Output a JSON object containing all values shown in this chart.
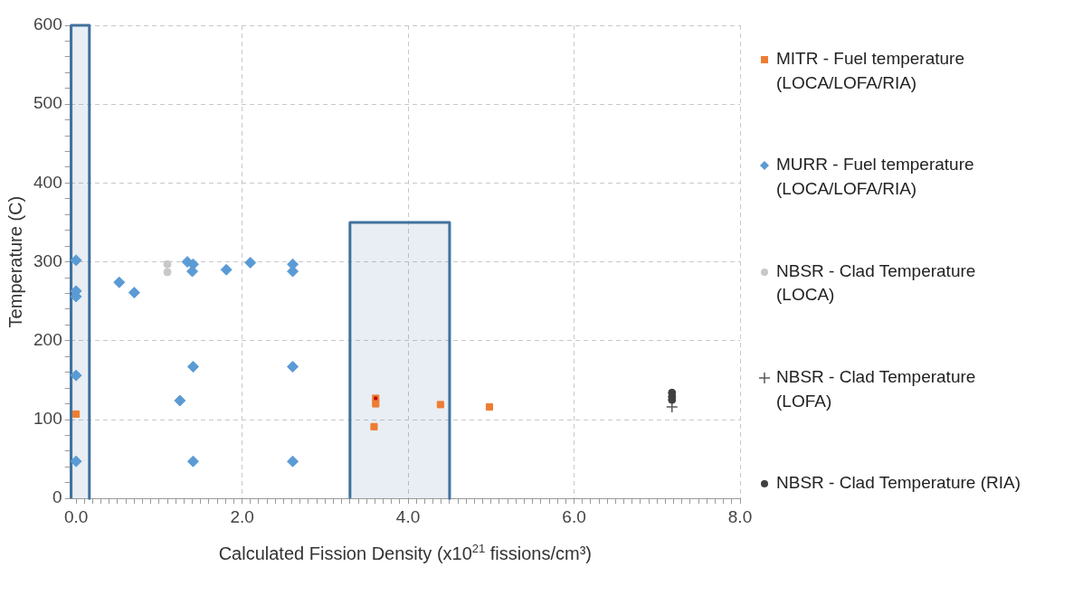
{
  "chart_data": {
    "type": "scatter",
    "xlabel": "Calculated Fission Density (x10$^{21}$ fissions/cm³)",
    "ylabel": "Temperature (C)",
    "xlim": [
      -0.07,
      8
    ],
    "ylim": [
      0,
      600
    ],
    "xticks": [
      {
        "value": 0,
        "label": "0.0"
      },
      {
        "value": 0.1,
        "label": null
      },
      {
        "value": 0.2,
        "label": null
      },
      {
        "value": 0.3,
        "label": null
      },
      {
        "value": 0.4,
        "label": null
      },
      {
        "value": 0.5,
        "label": null
      },
      {
        "value": 0.6,
        "label": null
      },
      {
        "value": 0.7,
        "label": null
      },
      {
        "value": 0.8,
        "label": null
      },
      {
        "value": 0.9,
        "label": null
      },
      {
        "value": 1,
        "label": null
      },
      {
        "value": 1.1,
        "label": null
      },
      {
        "value": 1.2,
        "label": null
      },
      {
        "value": 1.3,
        "label": null
      },
      {
        "value": 1.4,
        "label": null
      },
      {
        "value": 1.5,
        "label": null
      },
      {
        "value": 1.6,
        "label": null
      },
      {
        "value": 1.7,
        "label": null
      },
      {
        "value": 1.8,
        "label": null
      },
      {
        "value": 1.9,
        "label": null
      },
      {
        "value": 2,
        "label": "2.0"
      },
      {
        "value": 2.1,
        "label": null
      },
      {
        "value": 2.2,
        "label": null
      },
      {
        "value": 2.3,
        "label": null
      },
      {
        "value": 2.4,
        "label": null
      },
      {
        "value": 2.5,
        "label": null
      },
      {
        "value": 2.6,
        "label": null
      },
      {
        "value": 2.7,
        "label": null
      },
      {
        "value": 2.8,
        "label": null
      },
      {
        "value": 2.9,
        "label": null
      },
      {
        "value": 3,
        "label": null
      },
      {
        "value": 3.1,
        "label": null
      },
      {
        "value": 3.2,
        "label": null
      },
      {
        "value": 3.3,
        "label": null
      },
      {
        "value": 3.4,
        "label": null
      },
      {
        "value": 3.5,
        "label": null
      },
      {
        "value": 3.6,
        "label": null
      },
      {
        "value": 3.7,
        "label": null
      },
      {
        "value": 3.8,
        "label": null
      },
      {
        "value": 3.9,
        "label": null
      },
      {
        "value": 4,
        "label": "4.0"
      },
      {
        "value": 4.1,
        "label": null
      },
      {
        "value": 4.2,
        "label": null
      },
      {
        "value": 4.3,
        "label": null
      },
      {
        "value": 4.4,
        "label": null
      },
      {
        "value": 4.5,
        "label": null
      },
      {
        "value": 4.6,
        "label": null
      },
      {
        "value": 4.7,
        "label": null
      },
      {
        "value": 4.8,
        "label": null
      },
      {
        "value": 4.9,
        "label": null
      },
      {
        "value": 5,
        "label": null
      },
      {
        "value": 5.1,
        "label": null
      },
      {
        "value": 5.2,
        "label": null
      },
      {
        "value": 5.3,
        "label": null
      },
      {
        "value": 5.4,
        "label": null
      },
      {
        "value": 5.5,
        "label": null
      },
      {
        "value": 5.6,
        "label": null
      },
      {
        "value": 5.7,
        "label": null
      },
      {
        "value": 5.8,
        "label": null
      },
      {
        "value": 5.9,
        "label": null
      },
      {
        "value": 6,
        "label": "6.0"
      },
      {
        "value": 6.1,
        "label": null
      },
      {
        "value": 6.2,
        "label": null
      },
      {
        "value": 6.3,
        "label": null
      },
      {
        "value": 6.4,
        "label": null
      },
      {
        "value": 6.5,
        "label": null
      },
      {
        "value": 6.6,
        "label": null
      },
      {
        "value": 6.7,
        "label": null
      },
      {
        "value": 6.8,
        "label": null
      },
      {
        "value": 6.9,
        "label": null
      },
      {
        "value": 7,
        "label": null
      },
      {
        "value": 7.1,
        "label": null
      },
      {
        "value": 7.2,
        "label": null
      },
      {
        "value": 7.3,
        "label": null
      },
      {
        "value": 7.4,
        "label": null
      },
      {
        "value": 7.5,
        "label": null
      },
      {
        "value": 7.6,
        "label": null
      },
      {
        "value": 7.7,
        "label": null
      },
      {
        "value": 7.8,
        "label": null
      },
      {
        "value": 7.9,
        "label": null
      },
      {
        "value": 8,
        "label": "8.0"
      }
    ],
    "yticks": [
      0,
      {
        "value": 20,
        "label": null
      },
      {
        "value": 40,
        "label": null
      },
      {
        "value": 60,
        "label": null
      },
      {
        "value": 80,
        "label": null
      },
      100,
      {
        "value": 120,
        "label": null
      },
      {
        "value": 140,
        "label": null
      },
      {
        "value": 160,
        "label": null
      },
      {
        "value": 180,
        "label": null
      },
      200,
      {
        "value": 220,
        "label": null
      },
      {
        "value": 240,
        "label": null
      },
      {
        "value": 260,
        "label": null
      },
      {
        "value": 280,
        "label": null
      },
      300,
      {
        "value": 320,
        "label": null
      },
      {
        "value": 340,
        "label": null
      },
      {
        "value": 360,
        "label": null
      },
      {
        "value": 380,
        "label": null
      },
      400,
      {
        "value": 420,
        "label": null
      },
      {
        "value": 440,
        "label": null
      },
      {
        "value": 460,
        "label": null
      },
      {
        "value": 480,
        "label": null
      },
      500,
      {
        "value": 520,
        "label": null
      },
      {
        "value": 540,
        "label": null
      },
      {
        "value": 560,
        "label": null
      },
      {
        "value": 580,
        "label": null
      },
      600
    ],
    "grid": true,
    "legend": "right",
    "series": [
      {
        "type": "area",
        "color": "#41719c",
        "x": [
          -0.06,
          -0.06,
          0.16,
          0.16
        ],
        "values": [
          0,
          600,
          600,
          0
        ]
      },
      {
        "type": "area",
        "color": "#41719c",
        "x": [
          3.3,
          3.3,
          4.5,
          4.5
        ],
        "values": [
          0,
          350,
          350,
          0
        ]
      },
      {
        "name": "MITR - Fuel temperature (LOCA/LOFA/RIA)",
        "color": "#ed7d31",
        "marker": "square",
        "x": [
          0,
          3.61,
          3.61,
          3.59,
          4.39,
          4.98
        ],
        "values": [
          107,
          127,
          120,
          91,
          119,
          116
        ]
      },
      {
        "name": "MURR - Fuel temperature (LOCA/LOFA/RIA)",
        "color": "#5b9bd5",
        "marker": "diamond",
        "x": [
          0,
          0,
          0,
          0,
          0,
          0.52,
          0.7,
          1.34,
          1.41,
          1.4,
          1.81,
          2.1,
          2.61,
          2.61,
          1.41,
          2.61,
          1.25,
          1.41,
          2.61
        ],
        "values": [
          302,
          263,
          256,
          156,
          47,
          274,
          261,
          300,
          297,
          288,
          290,
          299,
          297,
          288,
          167,
          167,
          124,
          47,
          47
        ]
      },
      {
        "name": "NBSR - Clad Temperature (LOCA)",
        "color": "#c8c8c8",
        "marker": "circle",
        "x": [
          1.1,
          1.1
        ],
        "values": [
          297,
          287
        ]
      },
      {
        "name": "NBSR - Clad Temperature (LOFA)",
        "color": "#595959",
        "marker": "cross",
        "x": [
          7.18
        ],
        "values": [
          116
        ]
      },
      {
        "name": "NBSR - Clad Temperature (RIA)",
        "color": "#404040",
        "marker": "circle",
        "x": [
          7.18,
          7.18,
          7.18
        ],
        "values": [
          134,
          129,
          125
        ]
      },
      {
        "color": "#c00000",
        "marker": "square",
        "x": [
          3.61
        ],
        "values": [
          127
        ]
      }
    ]
  }
}
